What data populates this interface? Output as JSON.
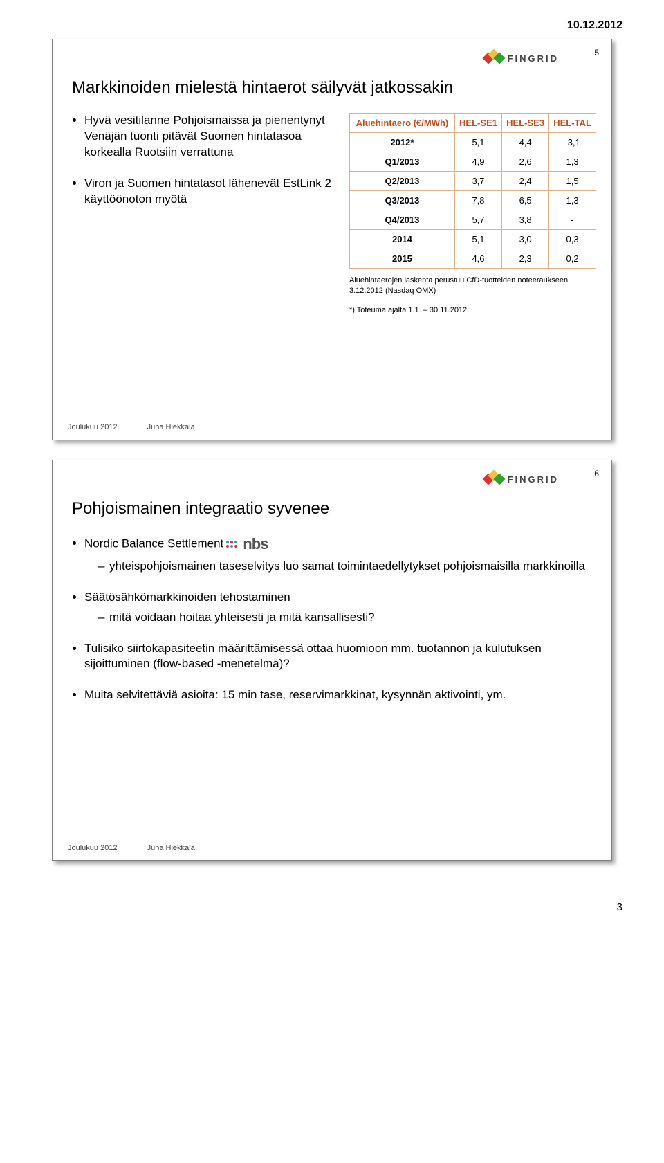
{
  "page": {
    "date_header": "10.12.2012",
    "page_number": "3"
  },
  "logo": {
    "text": "FINGRID"
  },
  "footer": {
    "left": "Joulukuu 2012",
    "right": "Juha Hiekkala"
  },
  "slide5": {
    "number": "5",
    "title": "Markkinoiden mielestä hintaerot säilyvät jatkossakin",
    "bullets": [
      "Hyvä vesitilanne Pohjoismaissa ja pienentynyt Venäjän tuonti pitävät Suomen hintatasoa korkealla Ruotsiin verrattuna",
      "Viron ja Suomen hintatasot lähenevät EstLink 2 käyttöönoton myötä"
    ],
    "table": {
      "columns": [
        "Aluehintaero (€/MWh)",
        "HEL-SE1",
        "HEL-SE3",
        "HEL-TAL"
      ],
      "header_color": "#c05020",
      "border_color": "#e0b080",
      "rows": [
        [
          "2012*",
          "5,1",
          "4,4",
          "-3,1"
        ],
        [
          "Q1/2013",
          "4,9",
          "2,6",
          "1,3"
        ],
        [
          "Q2/2013",
          "3,7",
          "2,4",
          "1,5"
        ],
        [
          "Q3/2013",
          "7,8",
          "6,5",
          "1,3"
        ],
        [
          "Q4/2013",
          "5,7",
          "3,8",
          "-"
        ],
        [
          "2014",
          "5,1",
          "3,0",
          "0,3"
        ],
        [
          "2015",
          "4,6",
          "2,3",
          "0,2"
        ]
      ],
      "caption": "Aluehintaerojen laskenta perustuu CfD-tuotteiden noteeraukseen 3.12.2012 (Nasdaq OMX)",
      "note": "*) Toteuma ajalta 1.1. – 30.11.2012."
    }
  },
  "slide6": {
    "number": "6",
    "title": "Pohjoismainen integraatio syvenee",
    "nbs_label": "nbs",
    "items": [
      {
        "text": "Nordic Balance Settlement",
        "has_nbs_logo": true,
        "sub": [
          "yhteispohjoismainen taseselvitys luo samat toimintaedellytykset pohjoismaisilla markkinoilla"
        ]
      },
      {
        "text": "Säätösähkömarkkinoiden tehostaminen",
        "sub": [
          "mitä voidaan hoitaa yhteisesti ja mitä kansallisesti?"
        ]
      },
      {
        "text": "Tulisiko siirtokapasiteetin määrittämisessä ottaa huomioon mm. tuotannon ja kulutuksen sijoittuminen (flow-based -menetelmä)?"
      },
      {
        "text": "Muita selvitettäviä asioita: 15 min tase, reservimarkkinat, kysynnän aktivointi, ym."
      }
    ]
  }
}
